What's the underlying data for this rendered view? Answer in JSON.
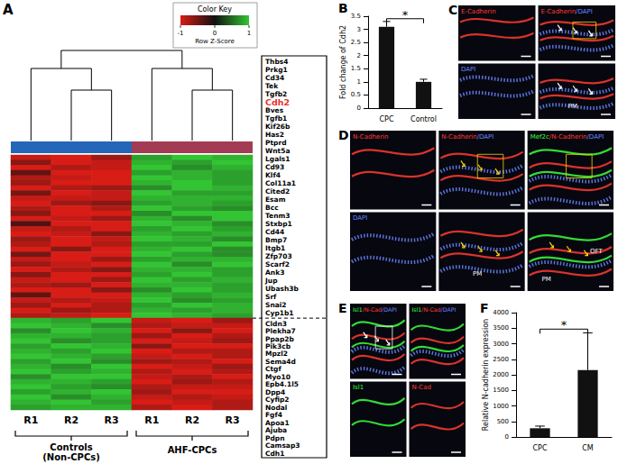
{
  "chart_data": [
    {
      "type": "heatmap",
      "label": "A",
      "categories": [
        "R1",
        "R2",
        "R3",
        "R1",
        "R2",
        "R3"
      ],
      "groups": [
        {
          "name_lines": [
            "Controls",
            "(Non-CPCs)"
          ],
          "color": "#2466b8",
          "columns": [
            0,
            1,
            2
          ]
        },
        {
          "name_lines": [
            "AHF-CPCs"
          ],
          "color": "#a33b55",
          "columns": [
            3,
            4,
            5
          ]
        }
      ],
      "gene_blocks": [
        [
          "Thbs4",
          "Prkg1",
          "Cd34",
          "Tek",
          "Tgfb2",
          {
            "name": "Cdh2",
            "color": "#e8322c"
          },
          "Bves",
          "Tgfb1",
          "Kif26b",
          "Has2",
          "Ptprd",
          "Wnt5a",
          "Lgals1",
          "Cd93",
          "Klf4",
          "Col11a1",
          "Cited2",
          "Esam",
          "Bcc",
          "Tenm3",
          "Stxbp1",
          "Cd44",
          "Bmp7",
          "Itgb1",
          "Zfp703",
          "Scarf2",
          "Ank3",
          "Jup",
          "Ubash3b",
          "Srf",
          "Snai2",
          "Cyp1b1"
        ],
        [
          "Cldn3",
          "Plekha7",
          "Ppap2b",
          "Pik3cb",
          "Mpzl2",
          "Sema4d",
          "Ctgf",
          "Myo10",
          "Epb4.1l5",
          "Dpp4",
          "Cyfip2",
          "Nodal",
          "Fgf4",
          "Apoa1",
          "Ajuba",
          "Pdpn",
          "Camsap3",
          "Cdh1"
        ]
      ],
      "values": [
        [
          -0.9,
          -1.1,
          -0.7,
          0.8,
          1.0,
          0.9
        ],
        [
          -0.6,
          -1.2,
          -0.9,
          0.9,
          0.8,
          1.0
        ],
        [
          -1.0,
          -0.8,
          -0.9,
          1.1,
          0.7,
          0.9
        ],
        [
          -0.4,
          -1.1,
          -1.0,
          0.8,
          0.9,
          0.8
        ],
        [
          -0.8,
          -0.9,
          -1.0,
          1.0,
          0.9,
          0.8
        ],
        [
          -0.7,
          -1.0,
          -1.1,
          0.9,
          1.1,
          0.8
        ],
        [
          -1.1,
          -0.8,
          -0.7,
          0.7,
          1.0,
          0.9
        ],
        [
          -0.5,
          -1.2,
          -0.9,
          1.0,
          0.8,
          0.8
        ],
        [
          -0.9,
          -0.9,
          -0.9,
          0.9,
          0.9,
          0.9
        ],
        [
          -1.2,
          -0.7,
          -0.6,
          0.8,
          0.9,
          0.8
        ],
        [
          -0.8,
          -1.0,
          -0.8,
          1.1,
          0.8,
          0.7
        ],
        [
          -0.6,
          -1.1,
          -1.0,
          0.7,
          1.0,
          1.0
        ],
        [
          -1.0,
          -0.9,
          -0.7,
          0.9,
          0.7,
          1.0
        ],
        [
          -0.3,
          -1.2,
          -1.1,
          1.0,
          0.9,
          0.7
        ],
        [
          -0.9,
          -0.8,
          -1.0,
          0.8,
          1.1,
          0.8
        ],
        [
          -1.1,
          -0.9,
          -0.6,
          0.9,
          0.8,
          0.9
        ],
        [
          -0.7,
          -1.0,
          -0.9,
          1.0,
          0.9,
          0.7
        ],
        [
          -0.8,
          -1.1,
          -0.8,
          0.8,
          0.8,
          1.1
        ],
        [
          -1.0,
          -0.6,
          -1.0,
          0.9,
          1.0,
          0.7
        ],
        [
          -0.5,
          -1.1,
          -1.0,
          1.1,
          0.8,
          0.7
        ],
        [
          -0.9,
          -1.0,
          -0.7,
          0.8,
          0.9,
          0.9
        ],
        [
          -0.7,
          -0.9,
          -1.1,
          1.0,
          0.7,
          1.0
        ],
        [
          -1.2,
          -0.8,
          -0.6,
          0.9,
          0.9,
          0.8
        ],
        [
          -0.6,
          -1.0,
          -1.0,
          0.8,
          1.0,
          0.8
        ],
        [
          -0.9,
          -1.1,
          -0.7,
          1.0,
          0.8,
          0.9
        ],
        [
          -0.8,
          -0.7,
          -1.1,
          0.9,
          0.9,
          0.8
        ],
        [
          -1.0,
          -1.0,
          -0.6,
          0.7,
          1.1,
          0.8
        ],
        [
          -0.4,
          -1.1,
          -1.1,
          0.9,
          0.8,
          0.9
        ],
        [
          -0.9,
          -0.8,
          -0.9,
          1.1,
          0.7,
          0.8
        ],
        [
          -0.7,
          -1.2,
          -0.8,
          0.8,
          1.0,
          0.9
        ],
        [
          -1.1,
          -0.7,
          -0.8,
          0.9,
          0.8,
          0.9
        ],
        [
          -0.8,
          -0.9,
          -1.0,
          1.0,
          0.9,
          0.8
        ],
        [
          0.9,
          0.8,
          1.0,
          -0.9,
          -1.1,
          -0.7
        ],
        [
          1.0,
          0.9,
          0.7,
          -0.8,
          -0.9,
          -0.9
        ],
        [
          0.7,
          1.1,
          0.9,
          -1.0,
          -0.6,
          -1.1
        ],
        [
          0.9,
          0.9,
          0.8,
          -0.7,
          -1.1,
          -0.8
        ],
        [
          1.1,
          0.7,
          0.8,
          -1.0,
          -0.9,
          -0.7
        ],
        [
          0.8,
          1.0,
          0.9,
          -0.6,
          -1.0,
          -1.1
        ],
        [
          0.9,
          0.8,
          1.0,
          -1.1,
          -0.8,
          -0.8
        ],
        [
          1.0,
          0.9,
          0.8,
          -0.9,
          -1.0,
          -0.8
        ],
        [
          0.8,
          1.1,
          0.7,
          -0.7,
          -0.8,
          -1.1
        ],
        [
          0.9,
          0.7,
          1.0,
          -1.0,
          -0.9,
          -0.7
        ],
        [
          1.0,
          0.8,
          0.9,
          -0.8,
          -1.1,
          -0.8
        ],
        [
          0.7,
          1.0,
          1.0,
          -0.9,
          -0.8,
          -1.0
        ],
        [
          0.9,
          0.9,
          0.8,
          -1.1,
          -0.7,
          -0.8
        ],
        [
          1.1,
          0.8,
          0.7,
          -0.8,
          -0.9,
          -0.9
        ],
        [
          0.8,
          0.9,
          1.0,
          -0.7,
          -1.0,
          -1.0
        ],
        [
          1.0,
          0.7,
          0.9,
          -0.9,
          -0.8,
          -0.9
        ],
        [
          0.9,
          1.0,
          0.8,
          -1.0,
          -0.9,
          -0.8
        ],
        [
          0.8,
          0.9,
          0.9,
          -0.8,
          -1.0,
          -0.8
        ]
      ],
      "colorbar": {
        "title": "Color Key",
        "label": "Row Z-Score",
        "range": [
          -1,
          1
        ],
        "ticks": [
          -1,
          0,
          1
        ],
        "colors": [
          "#d81c16",
          "#111111",
          "#33c433"
        ]
      }
    },
    {
      "type": "bar",
      "label": "B",
      "categories": [
        "CPC",
        "Control"
      ],
      "values": [
        3.1,
        1.0
      ],
      "errors": [
        0.2,
        0.1
      ],
      "color": "#111111",
      "ylabel": "Fold change of Cdh2",
      "ylim": [
        0,
        3.5
      ],
      "yticks": [
        0,
        0.5,
        1,
        1.5,
        2,
        2.5,
        3,
        3.5
      ],
      "significance": "*"
    },
    {
      "type": "bar",
      "label": "F",
      "categories": [
        "CPC",
        "CM"
      ],
      "values": [
        280,
        2150
      ],
      "errors": [
        70,
        1200
      ],
      "color": "#111111",
      "ylabel": "Relative N-cadherin expression",
      "ylim": [
        0,
        4000
      ],
      "yticks": [
        0,
        500,
        1000,
        1500,
        2000,
        2500,
        3000,
        3500,
        4000
      ],
      "significance": "*"
    }
  ],
  "image_panels": [
    {
      "label": "C",
      "images": [
        {
          "title": [
            {
              "text": "E-Cadherin",
              "color": "#ff3b30"
            }
          ]
        },
        {
          "title": [
            {
              "text": "E-Cadherin",
              "color": "#ff3b30"
            },
            {
              "text": "/DAPI",
              "color": "#6a86ff"
            }
          ]
        },
        {
          "title": [
            {
              "text": "DAPI",
              "color": "#6a86ff"
            }
          ]
        },
        {
          "labels": [
            "PM"
          ],
          "colors": [
            "#ff3b30",
            "#6a86ff"
          ]
        }
      ]
    },
    {
      "label": "D",
      "images": [
        {
          "title": [
            {
              "text": "N-Cadherin",
              "color": "#ff3b30"
            }
          ]
        },
        {
          "title": [
            {
              "text": "N-Cadherin",
              "color": "#ff3b30"
            },
            {
              "text": "/DAPI",
              "color": "#6a86ff"
            }
          ]
        },
        {
          "title": [
            {
              "text": "Mef2c",
              "color": "#3cff3c"
            },
            {
              "text": "/N-Cadherin",
              "color": "#ff3b30"
            },
            {
              "text": "/DAPI",
              "color": "#6a86ff"
            }
          ]
        },
        {
          "title": [
            {
              "text": "DAPI",
              "color": "#6a86ff"
            }
          ]
        },
        {
          "labels": [
            "PM"
          ],
          "colors": [
            "#ff3b30",
            "#6a86ff"
          ]
        },
        {
          "labels": [
            "OFT",
            "PM"
          ],
          "colors": [
            "#3cff3c",
            "#ff3b30",
            "#6a86ff"
          ]
        }
      ]
    },
    {
      "label": "E",
      "images": [
        {
          "title": [
            {
              "text": "Isl1",
              "color": "#3cff3c"
            },
            {
              "text": "/N-Cad",
              "color": "#ff3b30"
            },
            {
              "text": "/DAPI",
              "color": "#6a86ff"
            }
          ]
        },
        {
          "title": [
            {
              "text": "Isl1",
              "color": "#3cff3c"
            },
            {
              "text": "/N-Cad",
              "color": "#ff3b30"
            },
            {
              "text": "/DAPI",
              "color": "#6a86ff"
            }
          ]
        },
        {
          "title": [
            {
              "text": "Isl1",
              "color": "#3cff3c"
            }
          ]
        },
        {
          "title": [
            {
              "text": "N-Cad",
              "color": "#ff3b30"
            }
          ]
        }
      ]
    }
  ]
}
